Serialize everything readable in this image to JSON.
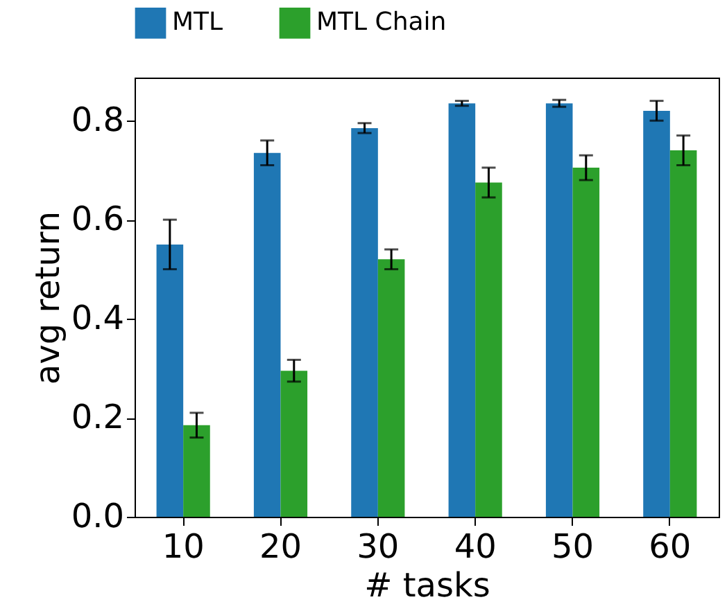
{
  "chart_data": {
    "type": "bar",
    "xlabel": "# tasks",
    "ylabel": "avg return",
    "categories": [
      "10",
      "20",
      "30",
      "40",
      "50",
      "60"
    ],
    "series": [
      {
        "name": "MTL",
        "color": "#1f77b4",
        "values": [
          0.55,
          0.735,
          0.785,
          0.835,
          0.835,
          0.82
        ],
        "errors": [
          0.05,
          0.025,
          0.01,
          0.005,
          0.007,
          0.02
        ]
      },
      {
        "name": "MTL Chain",
        "color": "#2ca02c",
        "values": [
          0.185,
          0.295,
          0.52,
          0.675,
          0.705,
          0.74
        ],
        "errors": [
          0.025,
          0.022,
          0.02,
          0.03,
          0.025,
          0.03
        ]
      }
    ],
    "ylim": [
      0,
      0.887
    ],
    "yticks": [
      {
        "value": 0,
        "label": "0.0"
      },
      {
        "value": 0.2,
        "label": "0.2"
      },
      {
        "value": 0.4,
        "label": "0.4"
      },
      {
        "value": 0.6,
        "label": "0.6"
      },
      {
        "value": 0.8,
        "label": "0.8"
      }
    ],
    "grid": false,
    "legend": "top"
  }
}
